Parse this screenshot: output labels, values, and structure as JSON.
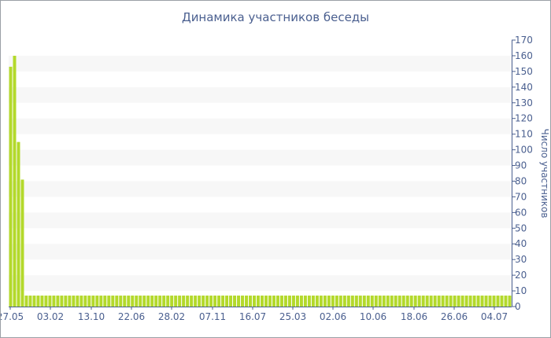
{
  "chart_data": {
    "type": "bar",
    "title": "Динамика участников беседы",
    "ylabel": "Число участников",
    "xlabel": "",
    "ylim": [
      0,
      170
    ],
    "yticks": [
      0,
      10,
      20,
      30,
      40,
      50,
      60,
      70,
      80,
      90,
      100,
      110,
      120,
      130,
      140,
      150,
      160,
      170
    ],
    "xtick_labels": [
      "27.05",
      "03.02",
      "13.10",
      "22.06",
      "28.02",
      "07.11",
      "16.07",
      "25.03",
      "02.06",
      "10.06",
      "18.06",
      "26.06",
      "04.07"
    ],
    "grid": "horizontal bands",
    "series": [
      {
        "values": [
          153,
          160,
          105,
          81,
          7,
          7,
          7,
          7,
          7,
          7,
          7,
          7,
          7,
          7,
          7,
          7,
          7,
          7,
          7,
          7,
          7,
          7,
          7,
          7,
          7,
          7,
          7,
          7,
          7,
          7,
          7,
          7,
          7,
          7,
          7,
          7,
          7,
          7,
          7,
          7,
          7,
          7,
          7,
          7,
          7,
          7,
          7,
          7,
          7,
          7,
          7,
          7,
          7,
          7,
          7,
          7,
          7,
          7,
          7,
          7,
          7,
          7,
          7,
          7,
          7,
          7,
          7,
          7,
          7,
          7,
          7,
          7,
          7,
          7,
          7,
          7,
          7,
          7,
          7,
          7,
          7,
          7,
          7,
          7,
          7,
          7,
          7,
          7,
          7,
          7,
          7,
          7,
          7,
          7,
          7,
          7,
          7,
          7,
          7,
          7,
          7,
          7,
          7,
          7,
          7,
          7,
          7,
          7,
          7,
          7,
          7,
          7,
          7,
          7,
          7,
          7,
          7,
          7,
          7,
          7,
          7,
          7,
          7,
          7,
          7,
          7,
          7,
          7
        ]
      }
    ],
    "colors": {
      "bar": "#b3d92b",
      "band": "#f7f7f7",
      "axis": "#4a5f8f",
      "text": "#4a5f8f"
    }
  }
}
